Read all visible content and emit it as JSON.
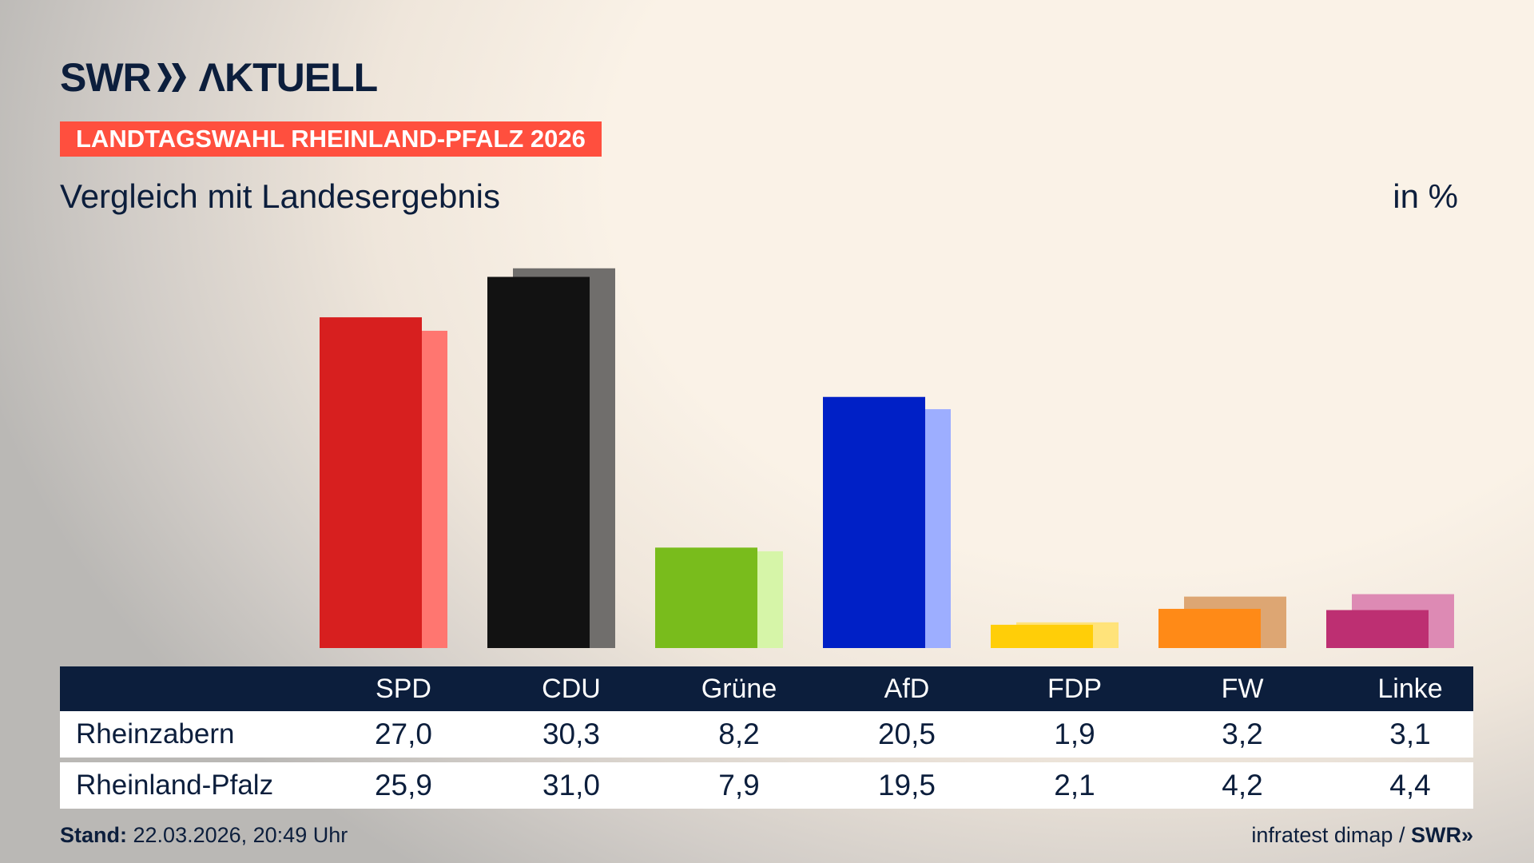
{
  "brand": {
    "logo": "SWR AKTUELL"
  },
  "tag": "LANDTAGSWAHL RHEINLAND-PFALZ 2026",
  "subtitle": "Vergleich mit Landesergebnis",
  "unit": "in %",
  "chart_data": {
    "type": "bar",
    "categories": [
      "SPD",
      "CDU",
      "Grüne",
      "AfD",
      "FDP",
      "FW",
      "Linke"
    ],
    "series": [
      {
        "name": "Rheinzabern",
        "values": [
          27.0,
          30.3,
          8.2,
          20.5,
          1.9,
          3.2,
          3.1
        ]
      },
      {
        "name": "Rheinland-Pfalz",
        "values": [
          25.9,
          31.0,
          7.9,
          19.5,
          2.1,
          4.2,
          4.4
        ]
      }
    ],
    "colors": [
      "#d71f1f",
      "#121212",
      "#79bc1c",
      "#0020c6",
      "#ffce08",
      "#ff8a17",
      "#bd2f72"
    ],
    "light_colors": [
      "#ff7670",
      "#706e6c",
      "#d6f5a8",
      "#9daeff",
      "#ffe37a",
      "#dda673",
      "#dd8ab4"
    ],
    "ylim": [
      0,
      31
    ]
  },
  "table": {
    "headers": [
      "SPD",
      "CDU",
      "Grüne",
      "AfD",
      "FDP",
      "FW",
      "Linke"
    ],
    "rows": [
      {
        "label": "Rheinzabern",
        "values": [
          "27,0",
          "30,3",
          "8,2",
          "20,5",
          "1,9",
          "3,2",
          "3,1"
        ]
      },
      {
        "label": "Rheinland-Pfalz",
        "values": [
          "25,9",
          "31,0",
          "7,9",
          "19,5",
          "2,1",
          "4,2",
          "4,4"
        ]
      }
    ]
  },
  "footer": {
    "stand_label": "Stand:",
    "stand_value": "22.03.2026, 20:49 Uhr",
    "source": "infratest dimap /",
    "source_logo": "SWR"
  }
}
